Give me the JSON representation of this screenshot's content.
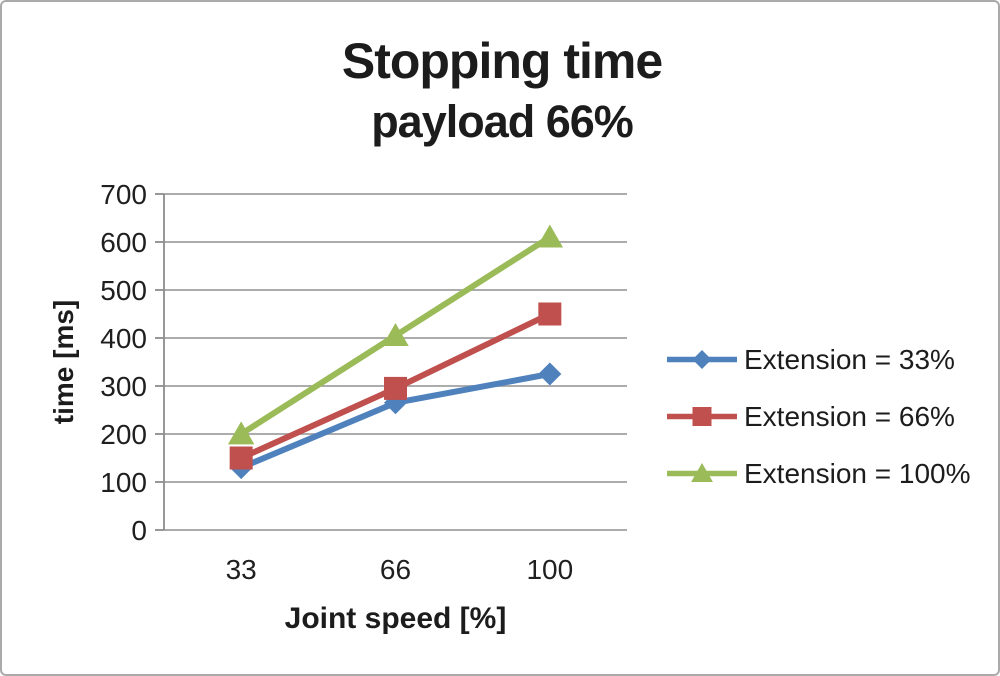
{
  "chart_data": {
    "type": "line",
    "title": "Stopping time",
    "subtitle": "payload 66%",
    "xlabel": "Joint speed [%]",
    "ylabel": "time [ms]",
    "categories": [
      "33",
      "66",
      "100"
    ],
    "series": [
      {
        "name": "Extension = 33%",
        "marker": "diamond",
        "color": "#4F81BD",
        "values": [
          130,
          265,
          325
        ]
      },
      {
        "name": "Extension = 66%",
        "marker": "square",
        "color": "#C0504D",
        "values": [
          150,
          295,
          450
        ]
      },
      {
        "name": "Extension = 100%",
        "marker": "triangle",
        "color": "#9BBB59",
        "values": [
          200,
          405,
          610
        ]
      }
    ],
    "y_ticks": [
      0,
      100,
      200,
      300,
      400,
      500,
      600,
      700
    ],
    "ylim": [
      0,
      700
    ],
    "grid": "horizontal",
    "legend_position": "right",
    "colors": {
      "gridline": "#A0A0A0",
      "axis": "#8C8C8C",
      "text": "#1f1f1f"
    }
  }
}
